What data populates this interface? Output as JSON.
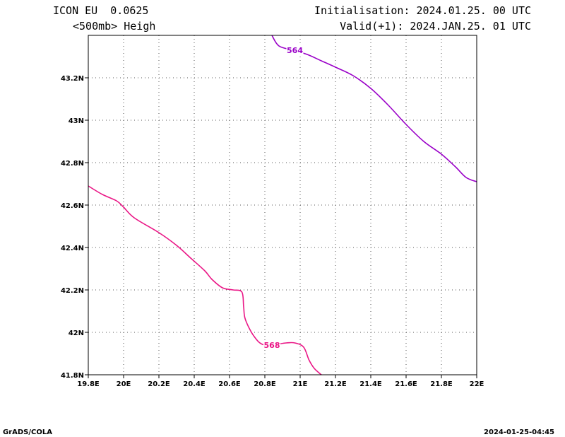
{
  "header": {
    "model": "ICON EU  0.0625",
    "field": "<500mb> Heigh",
    "init": "Initialisation: 2024.01.25. 00 UTC",
    "valid": "Valid(+1): 2024.JAN.25. 01 UTC"
  },
  "footer": {
    "left": "GrADS/COLA",
    "right": "2024-01-25-04:45"
  },
  "chart_data": {
    "type": "line",
    "xlim": [
      19.8,
      22.0
    ],
    "ylim": [
      41.8,
      43.4
    ],
    "x_ticks": [
      19.8,
      20.0,
      20.2,
      20.4,
      20.6,
      20.8,
      21.0,
      21.2,
      21.4,
      21.6,
      21.8,
      22.0
    ],
    "x_tick_labels": [
      "19.8E",
      "20E",
      "20.2E",
      "20.4E",
      "20.6E",
      "20.8E",
      "21E",
      "21.2E",
      "21.4E",
      "21.6E",
      "21.8E",
      "22E"
    ],
    "y_ticks": [
      41.8,
      42.0,
      42.2,
      42.4,
      42.6,
      42.8,
      43.0,
      43.2
    ],
    "y_tick_labels": [
      "41.8N",
      "42N",
      "42.2N",
      "42.4N",
      "42.6N",
      "42.8N",
      "43N",
      "43.2N"
    ],
    "grid": true,
    "series": [
      {
        "name": "564",
        "color": "#9a00c8",
        "label_at": [
          20.97,
          43.33
        ],
        "points": [
          [
            20.84,
            43.4
          ],
          [
            20.88,
            43.35
          ],
          [
            20.96,
            43.33
          ],
          [
            21.04,
            43.31
          ],
          [
            21.12,
            43.28
          ],
          [
            21.2,
            43.25
          ],
          [
            21.3,
            43.21
          ],
          [
            21.4,
            43.15
          ],
          [
            21.5,
            43.07
          ],
          [
            21.6,
            42.98
          ],
          [
            21.7,
            42.9
          ],
          [
            21.8,
            42.84
          ],
          [
            21.88,
            42.78
          ],
          [
            21.94,
            42.73
          ],
          [
            22.0,
            42.71
          ]
        ]
      },
      {
        "name": "568",
        "color": "#ea1686",
        "label_at": [
          20.84,
          41.94
        ],
        "points": [
          [
            19.8,
            42.69
          ],
          [
            19.88,
            42.65
          ],
          [
            19.96,
            42.62
          ],
          [
            20.0,
            42.59
          ],
          [
            20.06,
            42.54
          ],
          [
            20.2,
            42.47
          ],
          [
            20.3,
            42.41
          ],
          [
            20.38,
            42.35
          ],
          [
            20.46,
            42.29
          ],
          [
            20.5,
            42.25
          ],
          [
            20.56,
            42.21
          ],
          [
            20.62,
            42.2
          ],
          [
            20.67,
            42.19
          ],
          [
            20.68,
            42.12
          ],
          [
            20.69,
            42.06
          ],
          [
            20.74,
            41.98
          ],
          [
            20.8,
            41.94
          ],
          [
            20.92,
            41.95
          ],
          [
            20.97,
            41.95
          ],
          [
            21.02,
            41.93
          ],
          [
            21.05,
            41.87
          ],
          [
            21.08,
            41.83
          ],
          [
            21.12,
            41.8
          ]
        ]
      }
    ]
  }
}
